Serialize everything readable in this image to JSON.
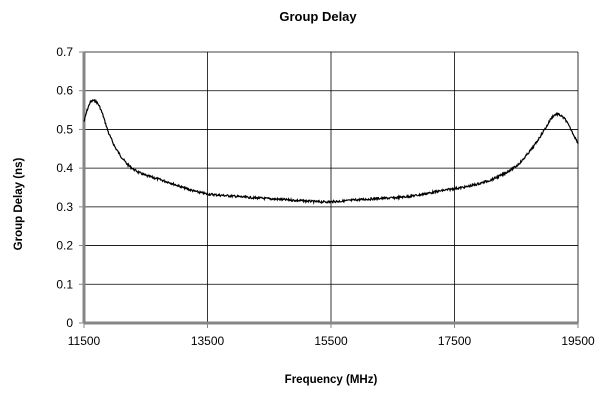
{
  "chart_data": {
    "type": "line",
    "title": "Group Delay",
    "xlabel": "Frequency (MHz)",
    "ylabel": "Group Delay (ns)",
    "xlim": [
      11500,
      19500
    ],
    "ylim": [
      0,
      0.7
    ],
    "x_ticks": [
      11500,
      13500,
      15500,
      17500,
      19500
    ],
    "x_tick_labels": [
      "11500",
      "13500",
      "15500",
      "17500",
      "19500"
    ],
    "y_ticks": [
      0,
      0.1,
      0.2,
      0.3,
      0.4,
      0.5,
      0.6,
      0.7
    ],
    "y_tick_labels": [
      "0",
      "0.1",
      "0.2",
      "0.3",
      "0.4",
      "0.5",
      "0.6",
      "0.7"
    ],
    "grid": true,
    "legend": "none",
    "colors": {
      "line": "#000000",
      "grid": "#000000",
      "axis": "#868686"
    },
    "series": [
      {
        "x": [
          11500,
          11550,
          11600,
          11650,
          11700,
          11750,
          11800,
          11850,
          11900,
          12000,
          12100,
          12200,
          12300,
          12400,
          12500,
          12700,
          12900,
          13100,
          13300,
          13500,
          13700,
          13900,
          14100,
          14300,
          14500,
          14700,
          14900,
          15100,
          15300,
          15500,
          15700,
          15900,
          16100,
          16300,
          16500,
          16700,
          16900,
          17100,
          17300,
          17500,
          17700,
          17900,
          18100,
          18300,
          18500,
          18600,
          18700,
          18800,
          18900,
          19000,
          19050,
          19100,
          19150,
          19200,
          19250,
          19300,
          19350,
          19400,
          19450,
          19500
        ],
        "values": [
          0.52,
          0.55,
          0.57,
          0.575,
          0.572,
          0.56,
          0.54,
          0.515,
          0.49,
          0.455,
          0.43,
          0.41,
          0.397,
          0.388,
          0.381,
          0.372,
          0.362,
          0.35,
          0.34,
          0.333,
          0.33,
          0.328,
          0.325,
          0.323,
          0.321,
          0.319,
          0.317,
          0.315,
          0.313,
          0.313,
          0.315,
          0.318,
          0.32,
          0.322,
          0.323,
          0.326,
          0.33,
          0.336,
          0.342,
          0.347,
          0.352,
          0.36,
          0.37,
          0.385,
          0.405,
          0.42,
          0.44,
          0.46,
          0.485,
          0.51,
          0.525,
          0.535,
          0.54,
          0.538,
          0.532,
          0.525,
          0.51,
          0.495,
          0.48,
          0.465
        ]
      }
    ]
  }
}
